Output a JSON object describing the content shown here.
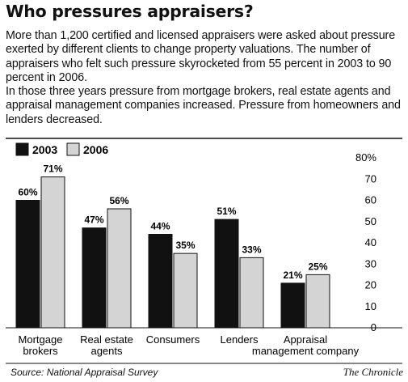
{
  "header": {
    "title": "Who pressures appraisers?",
    "paragraphs": [
      "More than 1,200 certified and licensed appraisers were asked about pressure exerted by different clients to change property valuations. The number of appraisers who felt such pressure skyrocketed from 55 percent in 2003 to 90 percent in 2006.",
      "In those three years pressure from mortgage brokers, real estate agents and appraisal management companies increased. Pressure from homeowners and lenders decreased."
    ]
  },
  "chart_data": {
    "type": "bar",
    "title": "",
    "xlabel": "",
    "ylabel": "",
    "ylim": [
      0,
      80
    ],
    "y_ticks": [
      0,
      10,
      20,
      30,
      40,
      50,
      60,
      70,
      80
    ],
    "y_tick_labels": [
      "0",
      "10",
      "20",
      "30",
      "40",
      "50",
      "60",
      "70",
      "80%"
    ],
    "y_axis_side": "right",
    "grid": false,
    "legend_position": "top-left",
    "categories": [
      [
        "Mortgage",
        "brokers"
      ],
      [
        "Real estate",
        "agents"
      ],
      [
        "Consumers"
      ],
      [
        "Lenders"
      ],
      [
        "Appraisal",
        "management company"
      ]
    ],
    "series": [
      {
        "name": "2003",
        "color": "#111111",
        "values": [
          60,
          47,
          44,
          51,
          21
        ],
        "labels": [
          "60%",
          "47%",
          "44%",
          "51%",
          "21%"
        ]
      },
      {
        "name": "2006",
        "color": "#d4d4d4",
        "values": [
          71,
          56,
          35,
          33,
          25
        ],
        "labels": [
          "71%",
          "56%",
          "35%",
          "33%",
          "25%"
        ]
      }
    ]
  },
  "footer": {
    "source": "Source: National Appraisal Survey",
    "credit": "The Chronicle"
  }
}
